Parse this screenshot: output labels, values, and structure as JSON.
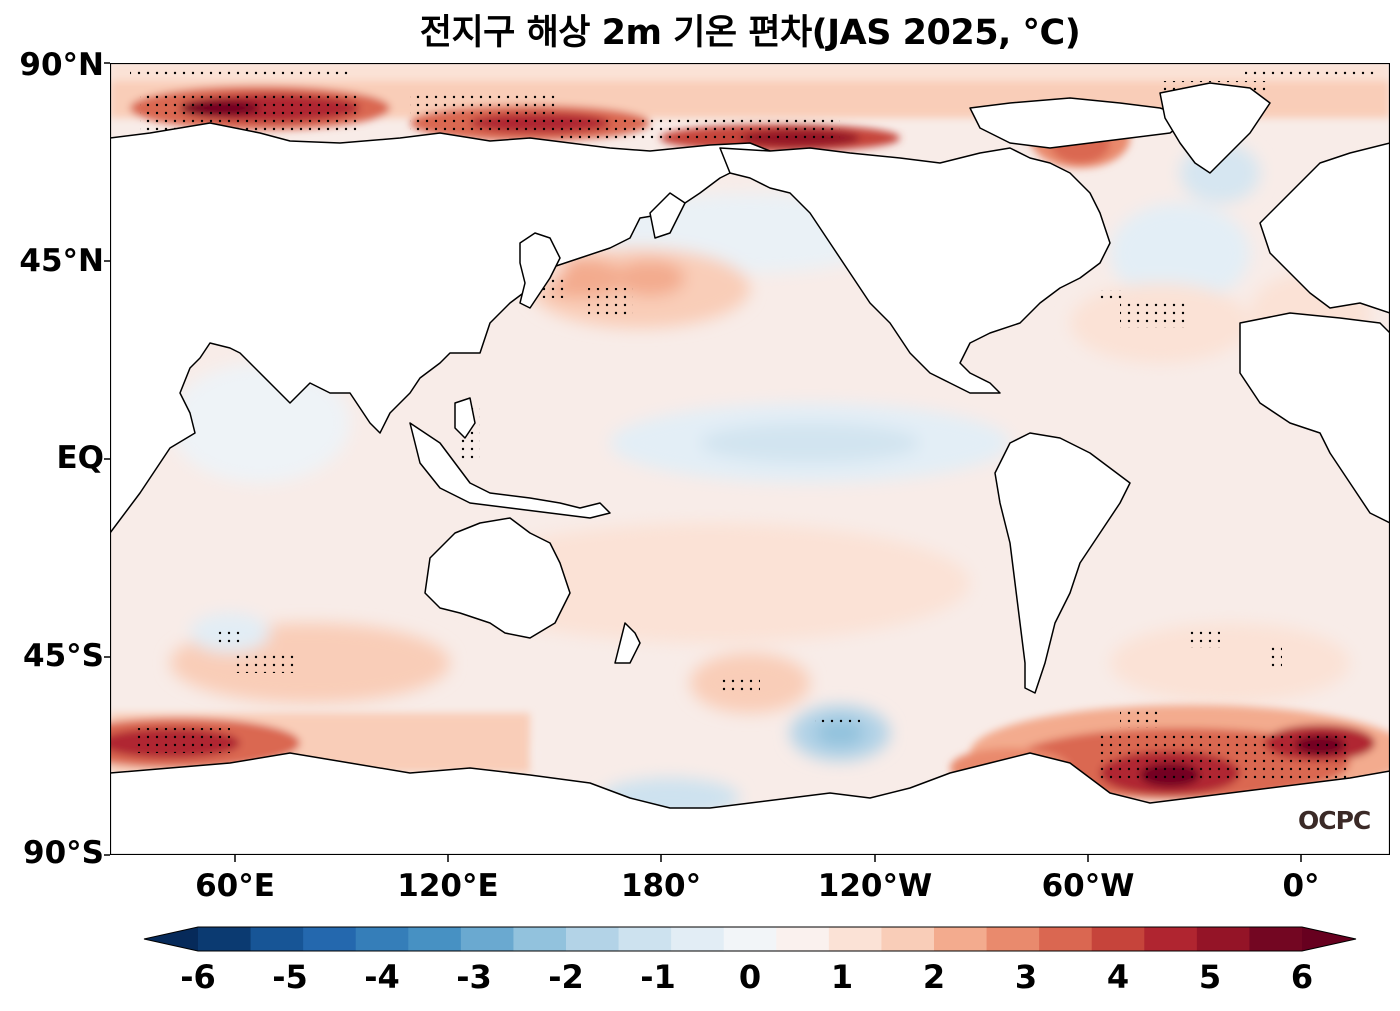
{
  "title": "전지구 해상 2m 기온 편차(JAS 2025, °C)",
  "logo_text": "OCPC",
  "lat_labels": [
    "90°N",
    "45°N",
    "EQ",
    "45°S",
    "90°S"
  ],
  "lon_labels": [
    "60°E",
    "120°E",
    "180°",
    "120°W",
    "60°W",
    "0°"
  ],
  "colorbar": {
    "ticks": [
      "-6",
      "-5",
      "-4",
      "-3",
      "-2",
      "-1",
      "0",
      "1",
      "2",
      "3",
      "4",
      "5",
      "6"
    ],
    "colors": [
      "#0b3a71",
      "#175596",
      "#2468ae",
      "#357eb9",
      "#4791c3",
      "#6aa9d0",
      "#92c2dd",
      "#b3d3e7",
      "#cde2ef",
      "#e2edf5",
      "#f2f5f8",
      "#faf1ee",
      "#fbe2d6",
      "#f9cdb8",
      "#f3ab8e",
      "#e98a6d",
      "#da6751",
      "#c6443b",
      "#b02530",
      "#941427",
      "#730622"
    ],
    "under_color": "#062a5a",
    "over_color": "#67001f"
  },
  "colors": {
    "ocean_base": "#f8ece8",
    "land": "#ffffff",
    "coast": "#000000"
  }
}
